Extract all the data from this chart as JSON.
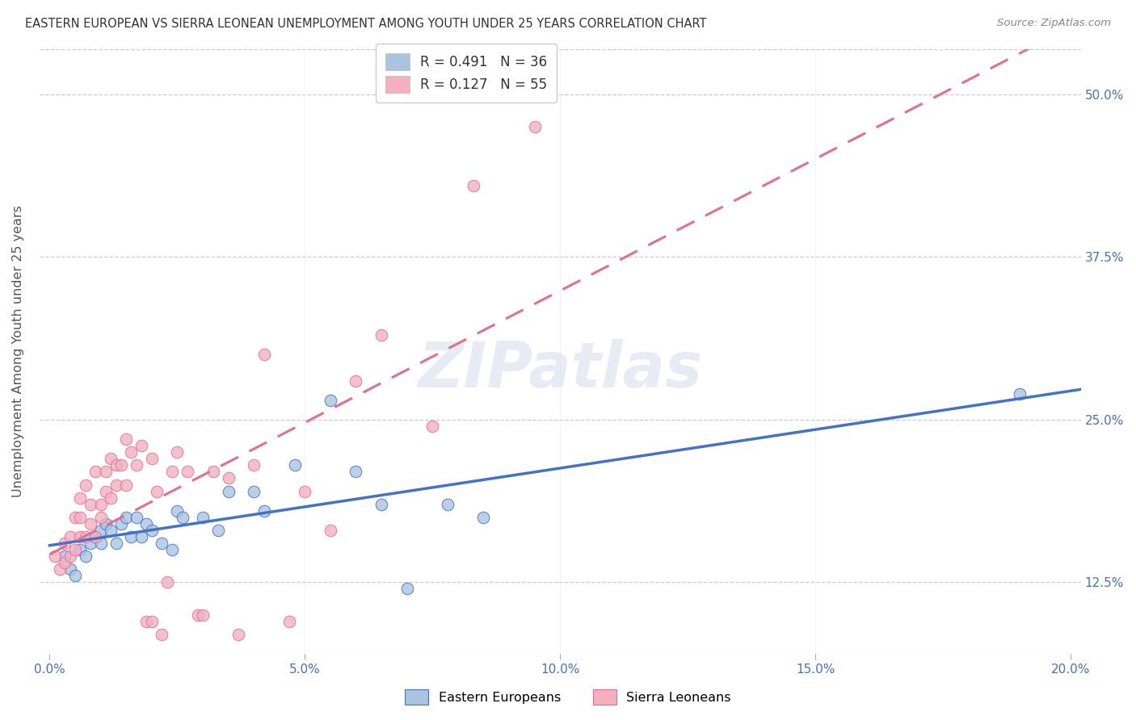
{
  "title": "EASTERN EUROPEAN VS SIERRA LEONEAN UNEMPLOYMENT AMONG YOUTH UNDER 25 YEARS CORRELATION CHART",
  "source": "Source: ZipAtlas.com",
  "xlabel_ticks": [
    "0.0%",
    "",
    "5.0%",
    "",
    "10.0%",
    "",
    "15.0%",
    "",
    "20.0%"
  ],
  "xtick_vals": [
    0.0,
    0.025,
    0.05,
    0.075,
    0.1,
    0.125,
    0.15,
    0.175,
    0.2
  ],
  "xtick_show": [
    0.0,
    0.05,
    0.1,
    0.15,
    0.2
  ],
  "xtick_show_labels": [
    "0.0%",
    "5.0%",
    "10.0%",
    "15.0%",
    "20.0%"
  ],
  "ytick_vals": [
    0.125,
    0.25,
    0.375,
    0.5
  ],
  "ytick_labels": [
    "12.5%",
    "25.0%",
    "37.5%",
    "50.0%"
  ],
  "ylabel_label": "Unemployment Among Youth under 25 years",
  "xlim": [
    -0.002,
    0.202
  ],
  "ylim": [
    0.07,
    0.535
  ],
  "blue_color": "#aac4e0",
  "pink_color": "#f4afc0",
  "blue_line_color": "#4472c4",
  "pink_line_color": "#e07090",
  "watermark": "ZIPatlas",
  "blue_R": 0.491,
  "blue_N": 36,
  "pink_R": 0.127,
  "pink_N": 55,
  "blue_scatter_x": [
    0.003,
    0.004,
    0.005,
    0.006,
    0.007,
    0.008,
    0.009,
    0.01,
    0.01,
    0.011,
    0.012,
    0.013,
    0.014,
    0.015,
    0.016,
    0.017,
    0.018,
    0.019,
    0.02,
    0.022,
    0.024,
    0.025,
    0.026,
    0.03,
    0.033,
    0.035,
    0.04,
    0.042,
    0.048,
    0.055,
    0.06,
    0.065,
    0.07,
    0.078,
    0.085,
    0.19
  ],
  "blue_scatter_y": [
    0.145,
    0.135,
    0.13,
    0.15,
    0.145,
    0.155,
    0.16,
    0.165,
    0.155,
    0.17,
    0.165,
    0.155,
    0.17,
    0.175,
    0.16,
    0.175,
    0.16,
    0.17,
    0.165,
    0.155,
    0.15,
    0.18,
    0.175,
    0.175,
    0.165,
    0.195,
    0.195,
    0.18,
    0.215,
    0.265,
    0.21,
    0.185,
    0.12,
    0.185,
    0.175,
    0.27
  ],
  "pink_scatter_x": [
    0.001,
    0.002,
    0.003,
    0.003,
    0.004,
    0.004,
    0.005,
    0.005,
    0.006,
    0.006,
    0.006,
    0.007,
    0.007,
    0.008,
    0.008,
    0.009,
    0.009,
    0.01,
    0.01,
    0.011,
    0.011,
    0.012,
    0.012,
    0.013,
    0.013,
    0.014,
    0.015,
    0.015,
    0.016,
    0.017,
    0.018,
    0.019,
    0.02,
    0.02,
    0.021,
    0.022,
    0.023,
    0.024,
    0.025,
    0.027,
    0.029,
    0.03,
    0.032,
    0.035,
    0.037,
    0.04,
    0.042,
    0.047,
    0.05,
    0.055,
    0.06,
    0.065,
    0.075,
    0.083,
    0.095
  ],
  "pink_scatter_y": [
    0.145,
    0.135,
    0.14,
    0.155,
    0.145,
    0.16,
    0.15,
    0.175,
    0.16,
    0.175,
    0.19,
    0.16,
    0.2,
    0.17,
    0.185,
    0.16,
    0.21,
    0.175,
    0.185,
    0.195,
    0.21,
    0.19,
    0.22,
    0.2,
    0.215,
    0.215,
    0.2,
    0.235,
    0.225,
    0.215,
    0.23,
    0.095,
    0.22,
    0.095,
    0.195,
    0.085,
    0.125,
    0.21,
    0.225,
    0.21,
    0.1,
    0.1,
    0.21,
    0.205,
    0.085,
    0.215,
    0.3,
    0.095,
    0.195,
    0.165,
    0.28,
    0.315,
    0.245,
    0.43,
    0.475
  ]
}
